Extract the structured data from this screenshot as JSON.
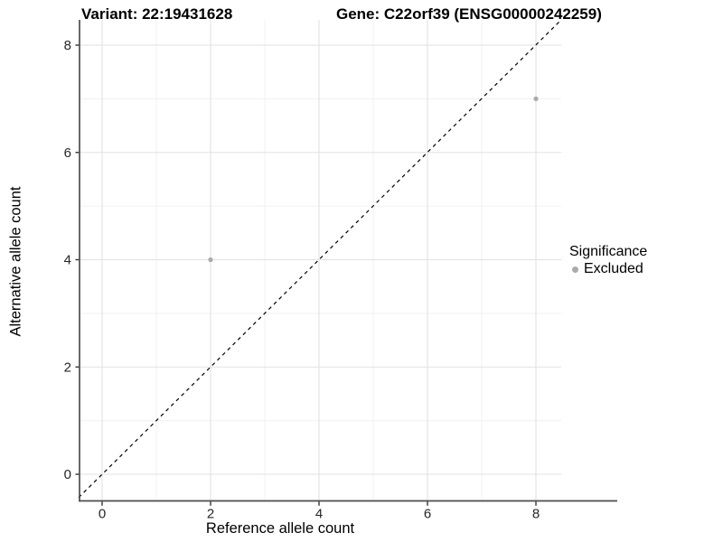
{
  "header": {
    "variant_title": "Variant: 22:19431628",
    "gene_title": "Gene: C22orf39 (ENSG00000242259)"
  },
  "chart_data": {
    "type": "scatter",
    "title_left": "Variant: 22:19431628",
    "title_right": "Gene: C22orf39 (ENSG00000242259)",
    "xlabel": "Reference allele count",
    "ylabel": "Alternative allele count",
    "xlim": [
      -0.45,
      8.45
    ],
    "ylim": [
      -0.45,
      8.45
    ],
    "x_ticks": [
      0,
      2,
      4,
      6,
      8
    ],
    "y_ticks": [
      0,
      2,
      4,
      6,
      8
    ],
    "minor_gridlines": [
      1,
      3,
      5,
      7
    ],
    "grid": true,
    "reference_line": {
      "type": "identity y=x",
      "style": "dashed",
      "color": "#000000"
    },
    "series": [
      {
        "name": "Excluded",
        "color": "#ABABAB",
        "points": [
          {
            "x": 2,
            "y": 4
          },
          {
            "x": 8,
            "y": 7
          }
        ]
      }
    ],
    "legend": {
      "title": "Significance",
      "position": "right",
      "entries": [
        {
          "label": "Excluded",
          "color": "#ABABAB"
        }
      ]
    },
    "colors": {
      "major_grid": "#E2E2E2",
      "minor_grid": "#F0F0F0",
      "axis_line": "#4D4D4D",
      "tick_label": "#262626",
      "point": "#ABABAB"
    }
  }
}
